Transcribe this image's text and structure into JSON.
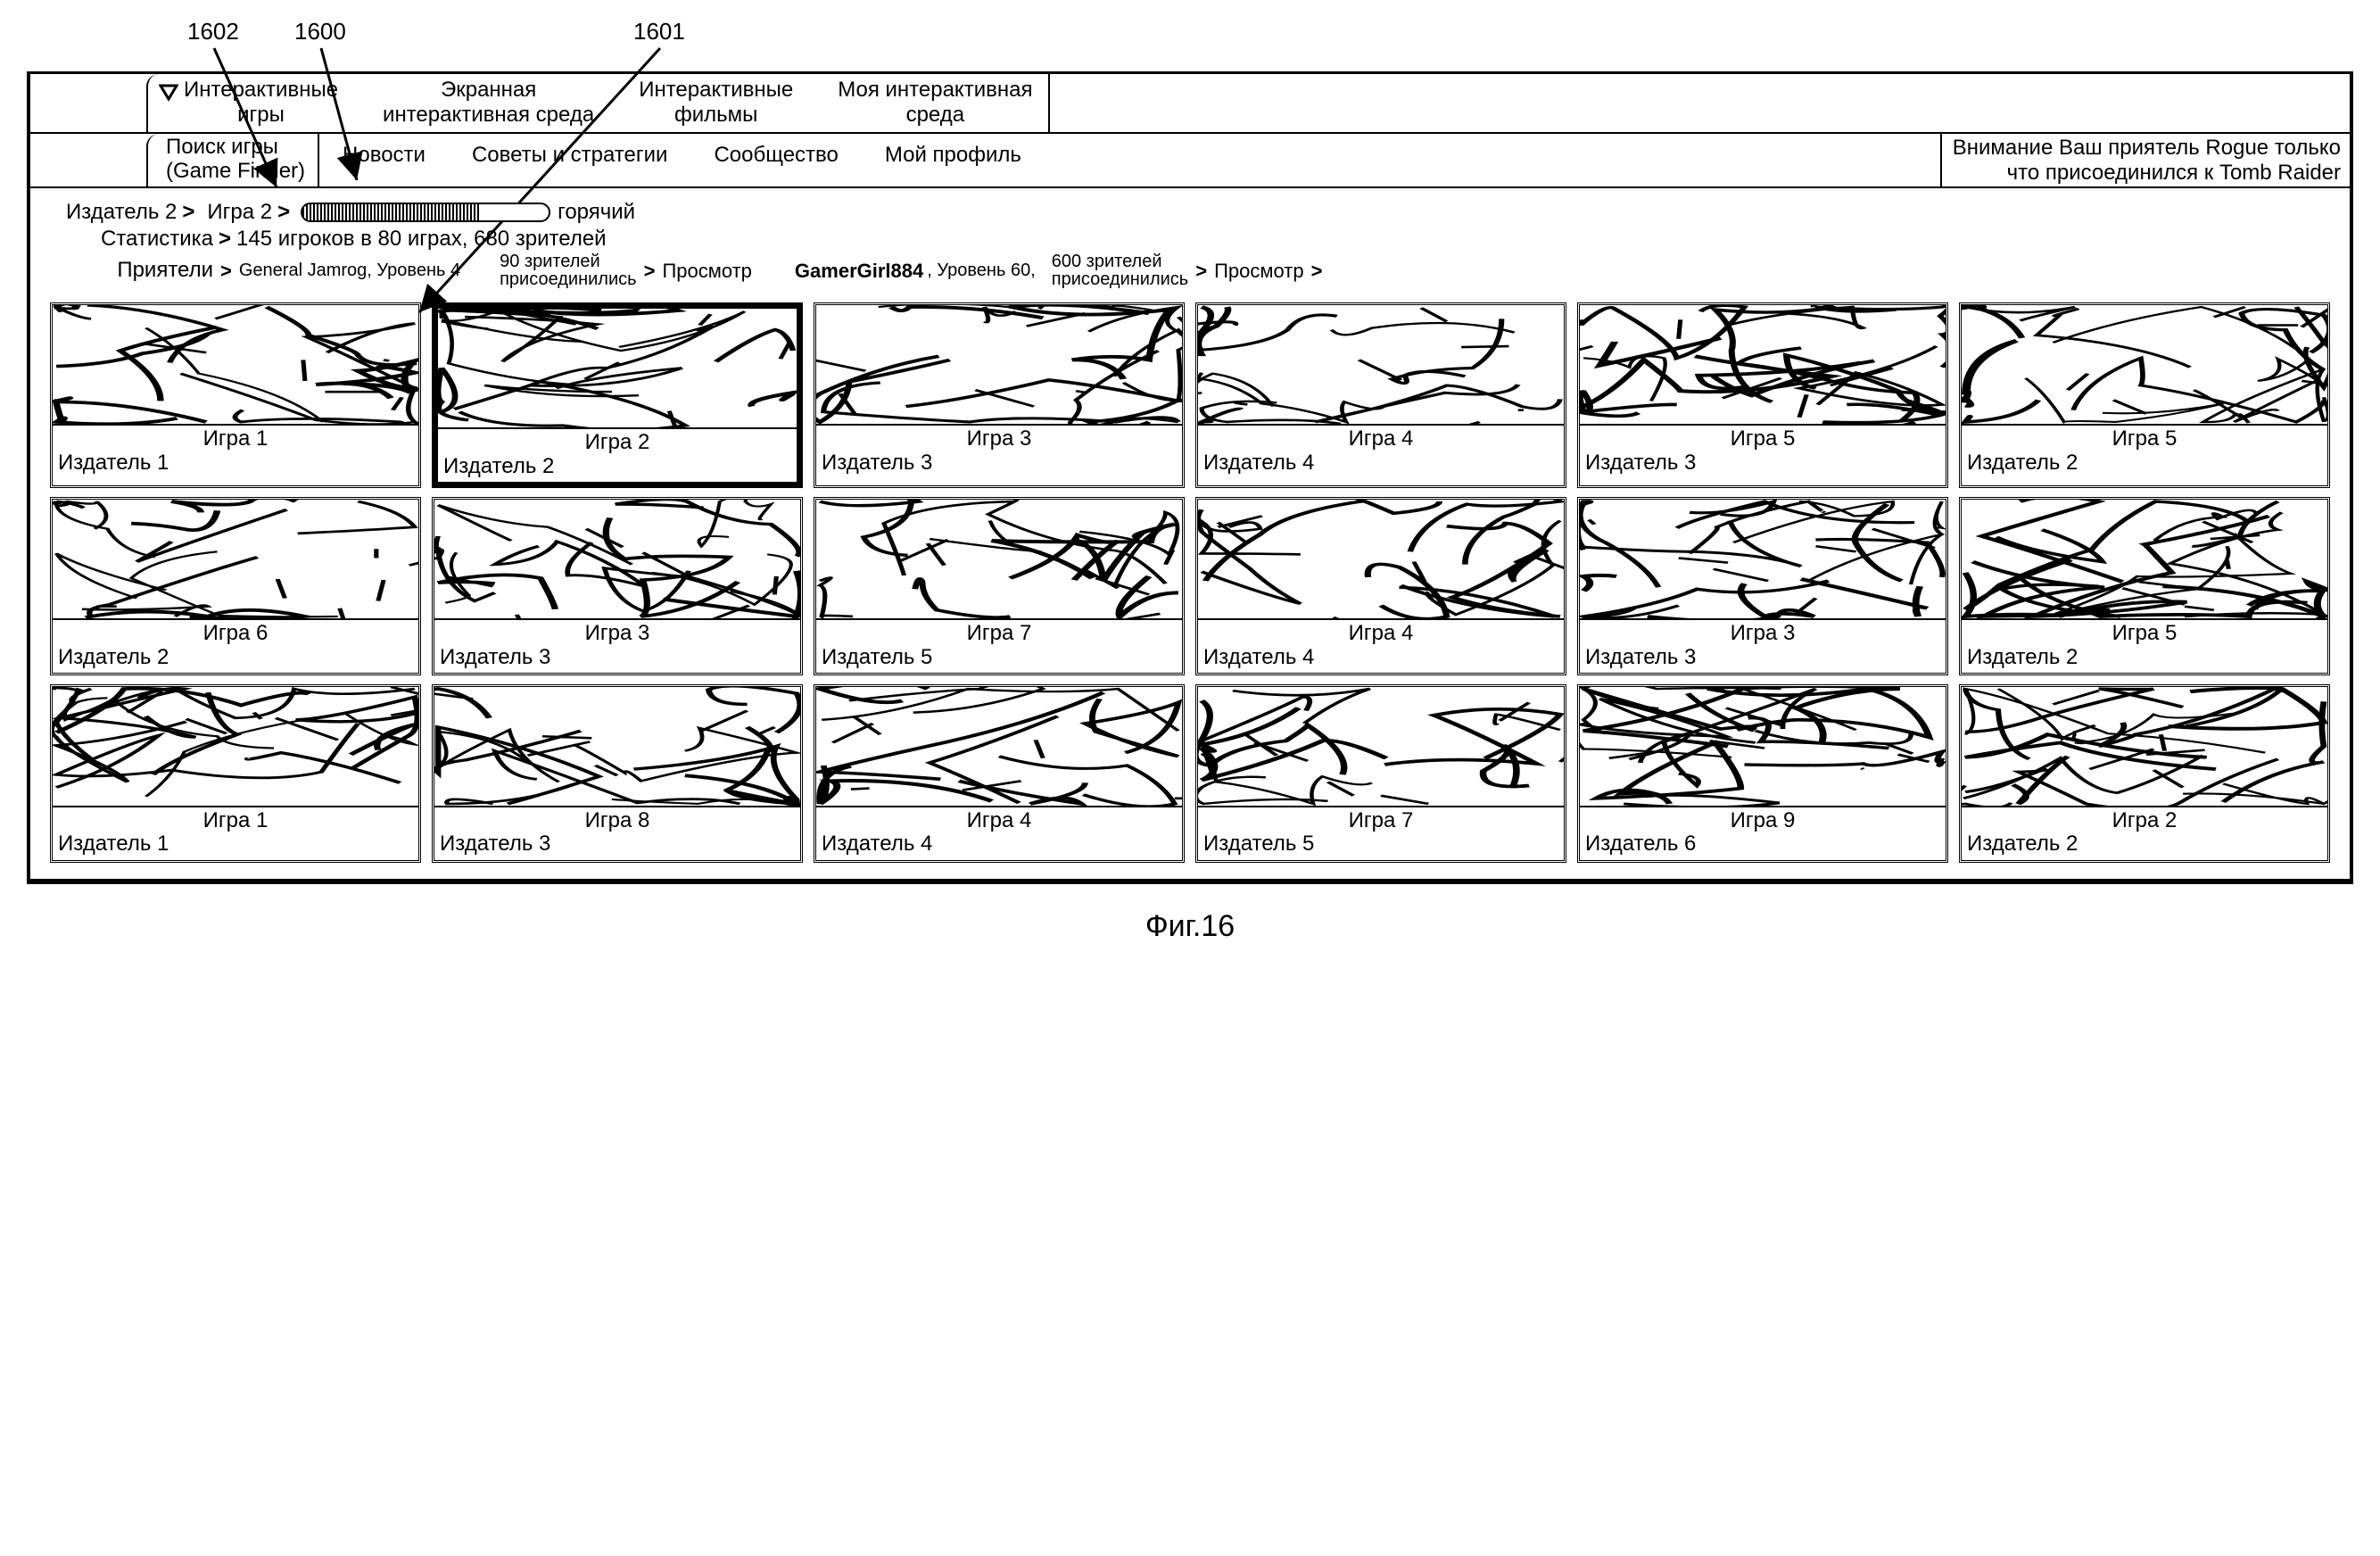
{
  "callouts": {
    "a": "1602",
    "b": "1600",
    "c": "1601"
  },
  "nav1": {
    "item1": "Интерактивные\nигры",
    "item2": "Экранная\nинтерактивная среда",
    "item3": "Интерактивные\nфильмы",
    "item4": "Моя интерактивная\nсреда"
  },
  "nav2": {
    "finder_line1": "Поиск игры",
    "finder_line2": "(Game Finder)",
    "news": "Новости",
    "tips": "Советы и стратегии",
    "community": "Сообщество",
    "profile": "Мой профиль",
    "alert_line1": "Внимание Ваш приятель Rogue только",
    "alert_line2": "что присоединился к Tomb Raider"
  },
  "info": {
    "publisher_label": "Издатель 2",
    "game_label": "Игра 2",
    "hot": "горячий",
    "thermo_fill_pct": 72,
    "stats_label": "Статистика",
    "stats_text": "145 игроков в 80 играх, 680 зрителей",
    "friends_label": "Приятели",
    "friend1_name": "General Jamrog, Уровень 4",
    "friend1_viewers_l1": "90 зрителей",
    "friend1_viewers_l2": "присоединились",
    "view1": "Просмотр",
    "friend2_name": "GamerGirl884",
    "friend2_level": ", Уровень 60,",
    "friend2_viewers_l1": "600 зрителей",
    "friend2_viewers_l2": "присоединились",
    "view2": "Просмотр"
  },
  "grid": [
    {
      "game": "Игра 1",
      "pub": "Издатель 1"
    },
    {
      "game": "Игра 2",
      "pub": "Издатель 2",
      "selected": true
    },
    {
      "game": "Игра 3",
      "pub": "Издатель 3"
    },
    {
      "game": "Игра 4",
      "pub": "Издатель 4"
    },
    {
      "game": "Игра 5",
      "pub": "Издатель 3"
    },
    {
      "game": "Игра 5",
      "pub": "Издатель 2"
    },
    {
      "game": "Игра 6",
      "pub": "Издатель 2"
    },
    {
      "game": "Игра 3",
      "pub": "Издатель 3"
    },
    {
      "game": "Игра 7",
      "pub": "Издатель 5"
    },
    {
      "game": "Игра 4",
      "pub": "Издатель 4"
    },
    {
      "game": "Игра 3",
      "pub": "Издатель 3"
    },
    {
      "game": "Игра 5",
      "pub": "Издатель 2"
    },
    {
      "game": "Игра 1",
      "pub": "Издатель 1"
    },
    {
      "game": "Игра 8",
      "pub": "Издатель 3"
    },
    {
      "game": "Игра 4",
      "pub": "Издатель 4"
    },
    {
      "game": "Игра 7",
      "pub": "Издатель 5"
    },
    {
      "game": "Игра 9",
      "pub": "Издатель 6"
    },
    {
      "game": "Игра 2",
      "pub": "Издатель 2"
    }
  ],
  "figure_caption": "Фиг.16",
  "colors": {
    "fg": "#000000",
    "bg": "#ffffff"
  }
}
